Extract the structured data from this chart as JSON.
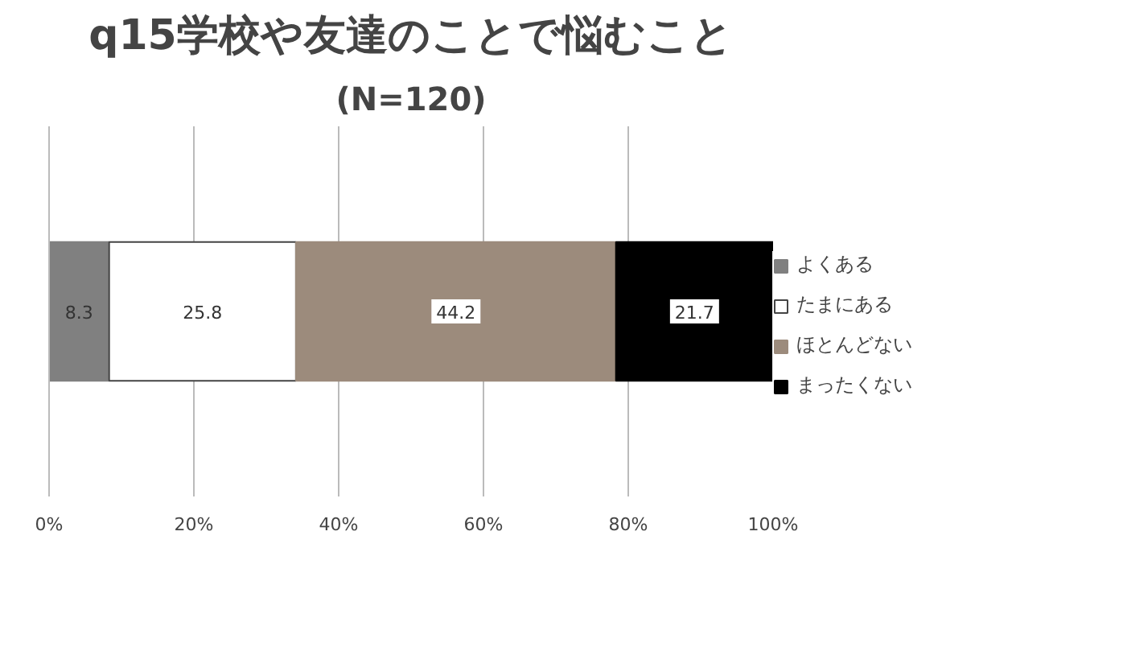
{
  "chart_data": {
    "type": "bar",
    "orientation": "horizontal",
    "stacked": true,
    "title": "q15学校や友達のことで悩むこと",
    "subtitle": "(N=120)",
    "categories": [
      null
    ],
    "series": [
      {
        "name": "よくある",
        "color": "#808080",
        "values": [
          8.3
        ]
      },
      {
        "name": "たまにある",
        "color": "#ffffff",
        "values": [
          25.8
        ]
      },
      {
        "name": "ほとんどない",
        "color": "#9c8b7c",
        "values": [
          44.2
        ]
      },
      {
        "name": "まったくない",
        "color": "#000000",
        "values": [
          21.7
        ]
      }
    ],
    "xlim": [
      0,
      100
    ],
    "xticks": [
      {
        "value": 0,
        "label": "0%"
      },
      {
        "value": 20,
        "label": "20%"
      },
      {
        "value": 40,
        "label": "40%"
      },
      {
        "value": 60,
        "label": "60%"
      },
      {
        "value": 80,
        "label": "80%"
      },
      {
        "value": 100,
        "label": "100%"
      }
    ],
    "data_labels": true,
    "grid": "x",
    "legend": "right"
  }
}
